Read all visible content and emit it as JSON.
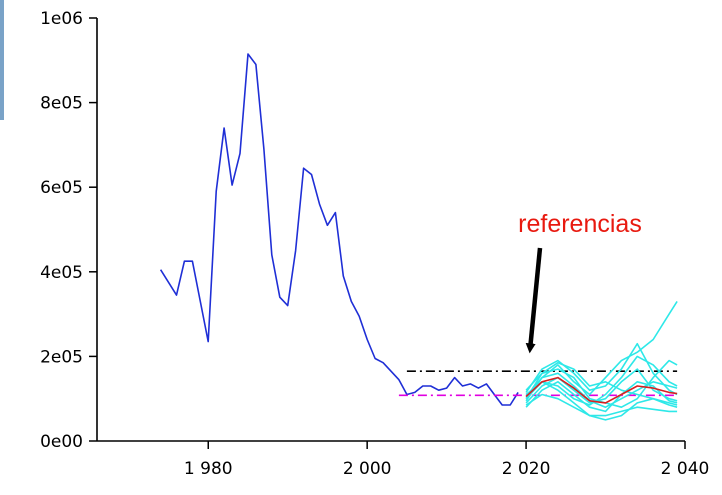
{
  "chart_data": {
    "type": "line",
    "title": "",
    "xlabel": "",
    "ylabel": "",
    "xlim": [
      1966,
      2040
    ],
    "ylim": [
      0,
      1000000
    ],
    "x_ticks": [
      {
        "value": 1980,
        "label": "1 980"
      },
      {
        "value": 2000,
        "label": "2 000"
      },
      {
        "value": 2020,
        "label": "2 020"
      },
      {
        "value": 2040,
        "label": "2 040"
      }
    ],
    "y_ticks": [
      {
        "value": 0,
        "label": "0e00"
      },
      {
        "value": 200000,
        "label": "2e05"
      },
      {
        "value": 400000,
        "label": "4e05"
      },
      {
        "value": 600000,
        "label": "6e05"
      },
      {
        "value": 800000,
        "label": "8e05"
      },
      {
        "value": 1000000,
        "label": "1e06"
      }
    ],
    "grid": false,
    "legend": "none",
    "series": [
      {
        "color": "#1f2fd6",
        "style": "solid",
        "points": [
          [
            1974,
            405000
          ],
          [
            1976,
            345000
          ],
          [
            1977,
            425000
          ],
          [
            1978,
            425000
          ],
          [
            1979,
            330000
          ],
          [
            1980,
            235000
          ],
          [
            1981,
            590000
          ],
          [
            1982,
            740000
          ],
          [
            1983,
            605000
          ],
          [
            1984,
            680000
          ],
          [
            1985,
            915000
          ],
          [
            1986,
            890000
          ],
          [
            1987,
            690000
          ],
          [
            1988,
            440000
          ],
          [
            1989,
            340000
          ],
          [
            1990,
            320000
          ],
          [
            1991,
            450000
          ],
          [
            1992,
            645000
          ],
          [
            1993,
            630000
          ],
          [
            1994,
            560000
          ],
          [
            1995,
            510000
          ],
          [
            1996,
            540000
          ],
          [
            1997,
            390000
          ],
          [
            1998,
            330000
          ],
          [
            1999,
            295000
          ],
          [
            2000,
            240000
          ],
          [
            2001,
            195000
          ],
          [
            2002,
            185000
          ],
          [
            2003,
            165000
          ],
          [
            2004,
            145000
          ],
          [
            2005,
            110000
          ],
          [
            2006,
            115000
          ],
          [
            2007,
            130000
          ],
          [
            2008,
            130000
          ],
          [
            2009,
            120000
          ],
          [
            2010,
            125000
          ],
          [
            2011,
            150000
          ],
          [
            2012,
            130000
          ],
          [
            2013,
            135000
          ],
          [
            2014,
            125000
          ],
          [
            2015,
            135000
          ],
          [
            2016,
            110000
          ],
          [
            2017,
            85000
          ],
          [
            2018,
            85000
          ],
          [
            2019,
            115000
          ]
        ]
      },
      {
        "color": "#000000",
        "style": "dash-dot",
        "points": [
          [
            2005,
            165000
          ],
          [
            2039,
            165000
          ]
        ]
      },
      {
        "color": "#e000e0",
        "style": "dash-dot",
        "points": [
          [
            2004,
            108000
          ],
          [
            2039,
            108000
          ]
        ]
      },
      {
        "color": "#2ee8e8",
        "style": "solid",
        "points": [
          [
            2020,
            95000
          ],
          [
            2022,
            150000
          ],
          [
            2024,
            180000
          ],
          [
            2026,
            140000
          ],
          [
            2028,
            110000
          ],
          [
            2030,
            150000
          ],
          [
            2032,
            190000
          ],
          [
            2034,
            210000
          ],
          [
            2036,
            240000
          ],
          [
            2038,
            300000
          ],
          [
            2039,
            330000
          ]
        ]
      },
      {
        "color": "#2ee8e8",
        "style": "solid",
        "points": [
          [
            2020,
            115000
          ],
          [
            2022,
            170000
          ],
          [
            2024,
            190000
          ],
          [
            2026,
            160000
          ],
          [
            2028,
            120000
          ],
          [
            2030,
            130000
          ],
          [
            2032,
            170000
          ],
          [
            2034,
            230000
          ],
          [
            2036,
            160000
          ],
          [
            2038,
            120000
          ],
          [
            2039,
            110000
          ]
        ]
      },
      {
        "color": "#2ee8e8",
        "style": "solid",
        "points": [
          [
            2020,
            80000
          ],
          [
            2022,
            120000
          ],
          [
            2024,
            140000
          ],
          [
            2026,
            110000
          ],
          [
            2028,
            80000
          ],
          [
            2030,
            70000
          ],
          [
            2032,
            110000
          ],
          [
            2034,
            140000
          ],
          [
            2036,
            130000
          ],
          [
            2038,
            95000
          ],
          [
            2039,
            90000
          ]
        ]
      },
      {
        "color": "#2ee8e8",
        "style": "solid",
        "points": [
          [
            2020,
            100000
          ],
          [
            2022,
            140000
          ],
          [
            2024,
            120000
          ],
          [
            2026,
            90000
          ],
          [
            2028,
            60000
          ],
          [
            2030,
            50000
          ],
          [
            2032,
            60000
          ],
          [
            2034,
            90000
          ],
          [
            2036,
            100000
          ],
          [
            2038,
            85000
          ],
          [
            2039,
            80000
          ]
        ]
      },
      {
        "color": "#2ee8e8",
        "style": "solid",
        "points": [
          [
            2020,
            120000
          ],
          [
            2022,
            160000
          ],
          [
            2024,
            170000
          ],
          [
            2026,
            150000
          ],
          [
            2028,
            100000
          ],
          [
            2030,
            90000
          ],
          [
            2032,
            80000
          ],
          [
            2034,
            100000
          ],
          [
            2036,
            150000
          ],
          [
            2038,
            190000
          ],
          [
            2039,
            180000
          ]
        ]
      },
      {
        "color": "#2ee8e8",
        "style": "solid",
        "points": [
          [
            2020,
            90000
          ],
          [
            2022,
            130000
          ],
          [
            2024,
            150000
          ],
          [
            2026,
            120000
          ],
          [
            2028,
            90000
          ],
          [
            2030,
            100000
          ],
          [
            2032,
            140000
          ],
          [
            2034,
            170000
          ],
          [
            2036,
            120000
          ],
          [
            2038,
            100000
          ],
          [
            2039,
            95000
          ]
        ]
      },
      {
        "color": "#2ee8e8",
        "style": "solid",
        "points": [
          [
            2020,
            105000
          ],
          [
            2022,
            150000
          ],
          [
            2024,
            160000
          ],
          [
            2026,
            130000
          ],
          [
            2028,
            95000
          ],
          [
            2030,
            80000
          ],
          [
            2032,
            100000
          ],
          [
            2034,
            120000
          ],
          [
            2036,
            140000
          ],
          [
            2038,
            130000
          ],
          [
            2039,
            125000
          ]
        ]
      },
      {
        "color": "#2ee8e8",
        "style": "solid",
        "points": [
          [
            2020,
            110000
          ],
          [
            2022,
            140000
          ],
          [
            2024,
            130000
          ],
          [
            2026,
            100000
          ],
          [
            2028,
            85000
          ],
          [
            2030,
            110000
          ],
          [
            2032,
            150000
          ],
          [
            2034,
            200000
          ],
          [
            2036,
            180000
          ],
          [
            2038,
            140000
          ],
          [
            2039,
            130000
          ]
        ]
      },
      {
        "color": "#2ee8e8",
        "style": "solid",
        "points": [
          [
            2020,
            85000
          ],
          [
            2022,
            110000
          ],
          [
            2024,
            100000
          ],
          [
            2026,
            80000
          ],
          [
            2028,
            60000
          ],
          [
            2030,
            60000
          ],
          [
            2032,
            70000
          ],
          [
            2034,
            80000
          ],
          [
            2036,
            75000
          ],
          [
            2038,
            70000
          ],
          [
            2039,
            70000
          ]
        ]
      },
      {
        "color": "#2ee8e8",
        "style": "solid",
        "points": [
          [
            2020,
            100000
          ],
          [
            2022,
            160000
          ],
          [
            2024,
            185000
          ],
          [
            2026,
            170000
          ],
          [
            2028,
            130000
          ],
          [
            2030,
            140000
          ],
          [
            2032,
            120000
          ],
          [
            2034,
            110000
          ],
          [
            2036,
            100000
          ],
          [
            2038,
            90000
          ],
          [
            2039,
            85000
          ]
        ]
      },
      {
        "color": "#d62020",
        "style": "solid",
        "points": [
          [
            2020,
            105000
          ],
          [
            2022,
            140000
          ],
          [
            2024,
            150000
          ],
          [
            2026,
            125000
          ],
          [
            2028,
            95000
          ],
          [
            2030,
            90000
          ],
          [
            2032,
            110000
          ],
          [
            2034,
            130000
          ],
          [
            2036,
            125000
          ],
          [
            2038,
            115000
          ],
          [
            2039,
            112000
          ]
        ]
      }
    ],
    "annotations": [
      {
        "text": "referencias",
        "color": "#e8190f",
        "arrow_target": [
          2019,
          200000
        ],
        "arrow_color": "#000000"
      }
    ]
  },
  "colors": {
    "axis": "#000000",
    "background": "#ffffff"
  }
}
